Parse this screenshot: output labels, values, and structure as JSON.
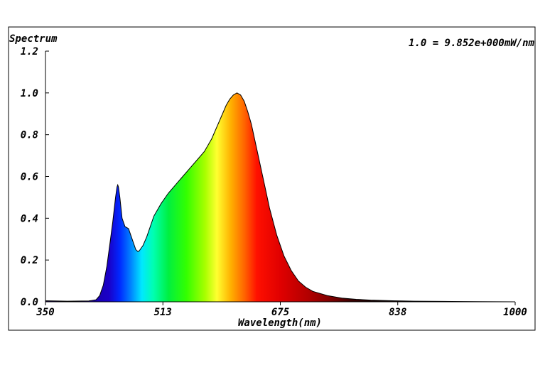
{
  "chart_data": {
    "type": "area",
    "title": "Spectrum",
    "scale_note": "1.0 = 9.852e+000mW/nm",
    "xlabel": "Wavelength(nm)",
    "ylabel": "",
    "xlim": [
      350,
      1000
    ],
    "ylim": [
      0.0,
      1.2
    ],
    "x_ticks": [
      "350",
      "513",
      "675",
      "838",
      "1000"
    ],
    "y_ticks": [
      "0.0",
      "0.2",
      "0.4",
      "0.6",
      "0.8",
      "1.0",
      "1.2"
    ],
    "grid": false,
    "series": [
      {
        "x": [
          350,
          380,
          410,
          420,
          425,
          430,
          435,
          440,
          443,
          447,
          449,
          450,
          451,
          453,
          456,
          460,
          465,
          470,
          475,
          478,
          480,
          485,
          490,
          495,
          500,
          510,
          520,
          530,
          540,
          550,
          560,
          570,
          580,
          590,
          600,
          605,
          610,
          615,
          620,
          625,
          630,
          635,
          640,
          645,
          650,
          655,
          660,
          670,
          680,
          690,
          700,
          710,
          720,
          740,
          760,
          780,
          800,
          830,
          860,
          900,
          950,
          1000
        ],
        "y": [
          0.005,
          0.003,
          0.004,
          0.01,
          0.03,
          0.08,
          0.17,
          0.3,
          0.38,
          0.5,
          0.55,
          0.56,
          0.55,
          0.5,
          0.4,
          0.36,
          0.35,
          0.3,
          0.25,
          0.24,
          0.245,
          0.27,
          0.31,
          0.36,
          0.41,
          0.47,
          0.52,
          0.56,
          0.6,
          0.64,
          0.68,
          0.72,
          0.78,
          0.86,
          0.94,
          0.97,
          0.99,
          1.0,
          0.99,
          0.96,
          0.91,
          0.85,
          0.77,
          0.69,
          0.61,
          0.53,
          0.45,
          0.32,
          0.22,
          0.15,
          0.1,
          0.07,
          0.05,
          0.03,
          0.018,
          0.012,
          0.008,
          0.005,
          0.003,
          0.002,
          0.001,
          0.0
        ]
      }
    ]
  }
}
